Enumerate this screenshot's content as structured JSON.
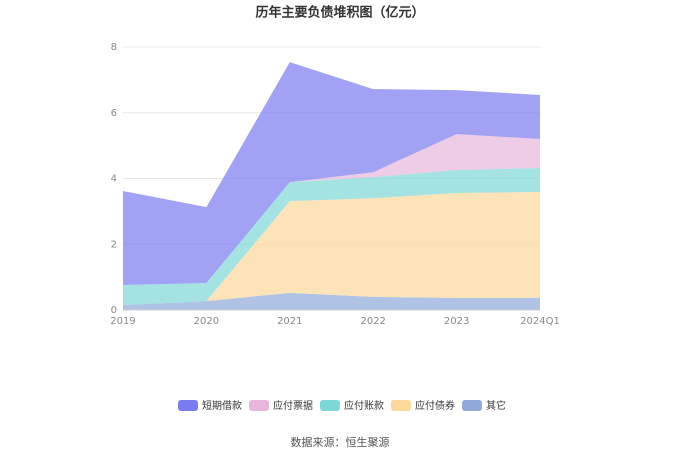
{
  "chart_data": {
    "type": "stacked-area",
    "title": "历年主要负债堆积图（亿元）",
    "categories": [
      "2019",
      "2020",
      "2021",
      "2022",
      "2023",
      "2024Q1"
    ],
    "series": [
      {
        "name": "短期借款",
        "color": "#7b7bf0",
        "values": [
          2.86,
          2.31,
          3.65,
          2.53,
          1.34,
          1.34
        ]
      },
      {
        "name": "应付票据",
        "color": "#e8b6dc",
        "values": [
          0,
          0,
          0,
          0.15,
          1.09,
          0.88
        ]
      },
      {
        "name": "应付账款",
        "color": "#7fd6d6",
        "values": [
          0.61,
          0.55,
          0.58,
          0.64,
          0.7,
          0.73
        ]
      },
      {
        "name": "应付债券",
        "color": "#fcd89a",
        "values": [
          0,
          0,
          2.79,
          3.0,
          3.19,
          3.22
        ]
      },
      {
        "name": "其它",
        "color": "#8fa9d8",
        "values": [
          0.15,
          0.27,
          0.52,
          0.4,
          0.37,
          0.37
        ]
      }
    ],
    "ylim": [
      0,
      8
    ],
    "yticks": [
      0,
      2,
      4,
      6,
      8
    ],
    "grid": true,
    "legend": "bottom",
    "source": "数据来源：恒生聚源"
  }
}
